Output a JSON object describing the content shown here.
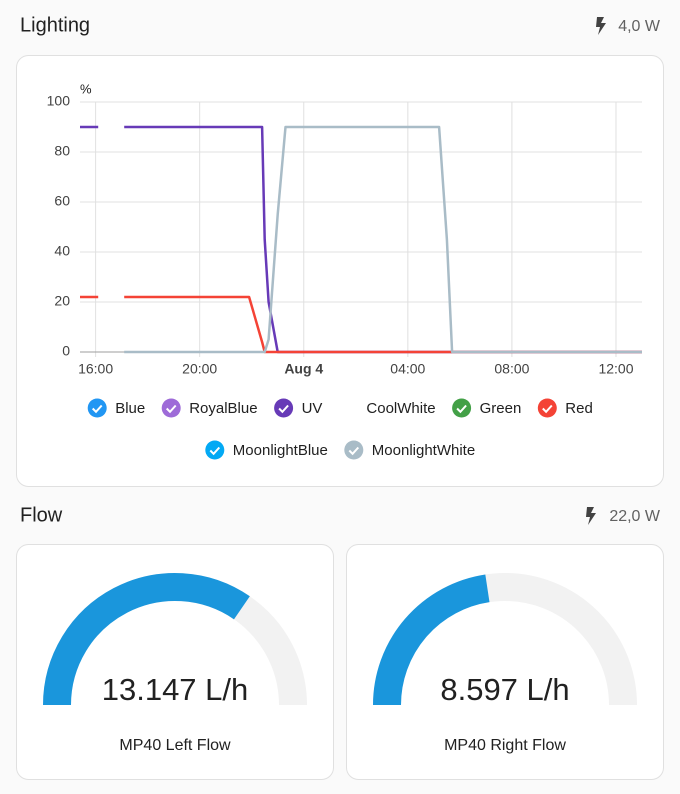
{
  "lighting": {
    "title": "Lighting",
    "power": "4,0 W"
  },
  "chart_data": {
    "type": "line",
    "y_label": "%",
    "x": [
      15.4,
      16.1,
      16.6,
      17.1,
      21.9,
      22.4,
      22.5,
      22.65,
      23.0,
      23.3,
      29.2,
      29.5,
      29.7,
      37.0
    ],
    "xlim": [
      15.4,
      37.0
    ],
    "xticks": [
      {
        "value": 16,
        "label": "16:00"
      },
      {
        "value": 20,
        "label": "20:00"
      },
      {
        "value": 24,
        "label": "Aug 4",
        "bold": true
      },
      {
        "value": 28,
        "label": "04:00"
      },
      {
        "value": 32,
        "label": "08:00"
      },
      {
        "value": 36,
        "label": "12:00"
      }
    ],
    "ylim": [
      0,
      100
    ],
    "yticks": [
      0,
      20,
      40,
      60,
      80,
      100
    ],
    "grid": true,
    "series": [
      {
        "name": "Blue",
        "color": "#2196f3"
      },
      {
        "name": "RoyalBlue",
        "color": "#9e6bd8"
      },
      {
        "name": "UV",
        "color": "#673ab7",
        "values": [
          90,
          90,
          null,
          90,
          90,
          90,
          45,
          20,
          0,
          0,
          0,
          0,
          0,
          0
        ]
      },
      {
        "name": "CoolWhite",
        "hidden": true
      },
      {
        "name": "Green",
        "color": "#43a047"
      },
      {
        "name": "Red",
        "color": "#f44336",
        "values": [
          22,
          22,
          null,
          22,
          22,
          4,
          0,
          0,
          0,
          0,
          0,
          0,
          0,
          0
        ]
      },
      {
        "name": "MoonlightBlue",
        "color": "#03a9f4"
      },
      {
        "name": "MoonlightWhite",
        "color": "#a9bcc7",
        "values": [
          null,
          null,
          null,
          0,
          0,
          0,
          0,
          5,
          55,
          90,
          90,
          45,
          0,
          0
        ]
      }
    ]
  },
  "flow": {
    "title": "Flow",
    "power": "22,0 W"
  },
  "gauges": [
    {
      "name": "MP40 Left Flow",
      "value": 13.147,
      "value_label": "13.147 L/h",
      "min": 0,
      "max": 19
    },
    {
      "name": "MP40 Right Flow",
      "value": 8.597,
      "value_label": "8.597 L/h",
      "min": 0,
      "max": 19
    }
  ]
}
